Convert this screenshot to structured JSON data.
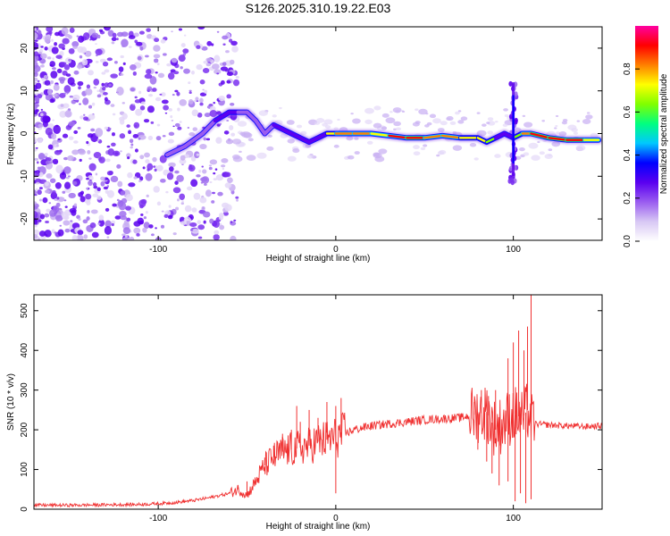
{
  "title": "S126.2025.310.19.22.E03",
  "chart_data": [
    {
      "type": "heatmap",
      "name": "spectrogram",
      "xlabel": "Height of straight line (km)",
      "ylabel": "Frequency (Hz)",
      "xlim": [
        -170,
        150
      ],
      "ylim": [
        -25,
        25
      ],
      "xticks": [
        -100,
        0,
        100
      ],
      "yticks": [
        -20,
        -10,
        0,
        10,
        20
      ],
      "colorbar": {
        "label": "Normalized spectral amplitude",
        "range": [
          0,
          1
        ],
        "ticks": [
          "0.0",
          "0.2",
          "0.4",
          "0.6",
          "0.8"
        ],
        "colors": [
          "#ffffff",
          "#d8c8f4",
          "#9a5cf0",
          "#5a00f0",
          "#0000ff",
          "#00c8ff",
          "#00ff80",
          "#80ff00",
          "#ffff00",
          "#ff8000",
          "#ff0000",
          "#ff00a0"
        ]
      },
      "ridge": {
        "x": [
          -95,
          -85,
          -75,
          -68,
          -60,
          -55,
          -50,
          -45,
          -40,
          -35,
          -30,
          -25,
          -20,
          -15,
          -10,
          -5,
          0,
          10,
          20,
          30,
          40,
          50,
          60,
          70,
          80,
          85,
          90,
          95,
          100,
          105,
          110,
          120,
          130,
          140,
          148
        ],
        "y": [
          -5,
          -3,
          0,
          3,
          5,
          5,
          5,
          3,
          0,
          2,
          1,
          0,
          -1,
          -2,
          -1,
          0,
          0,
          0,
          0,
          -0.5,
          -1,
          -1,
          -0.5,
          -1,
          -1,
          -2,
          -1,
          0,
          -1,
          0,
          0,
          -1,
          -1.5,
          -1.5,
          -1.5
        ],
        "amplitude": [
          0.3,
          0.35,
          0.35,
          0.4,
          0.45,
          0.4,
          0.4,
          0.35,
          0.35,
          0.4,
          0.45,
          0.45,
          0.45,
          0.5,
          0.5,
          0.6,
          0.8,
          0.9,
          0.7,
          0.8,
          0.95,
          0.9,
          0.8,
          0.75,
          0.7,
          0.7,
          0.6,
          0.4,
          0.5,
          0.75,
          0.9,
          0.95,
          0.95,
          0.9,
          0.6
        ]
      }
    },
    {
      "type": "line",
      "name": "snr",
      "xlabel": "Height of straight line (km)",
      "ylabel": "SNR (10 * v/v)",
      "xlim": [
        -170,
        150
      ],
      "ylim": [
        0,
        540
      ],
      "xticks": [
        -100,
        0,
        100
      ],
      "yticks": [
        0,
        100,
        200,
        300,
        400,
        500
      ],
      "color": "#f03030",
      "series": [
        {
          "name": "SNR",
          "x": [
            -170,
            -150,
            -130,
            -110,
            -100,
            -90,
            -80,
            -70,
            -60,
            -55,
            -50,
            -45,
            -40,
            -35,
            -30,
            -25,
            -20,
            -15,
            -10,
            -5,
            0,
            5,
            10,
            15,
            20,
            30,
            40,
            50,
            60,
            70,
            75,
            80,
            85,
            90,
            95,
            100,
            105,
            108,
            110,
            112,
            120,
            130,
            140,
            150
          ],
          "y": [
            10,
            10,
            11,
            12,
            14,
            17,
            22,
            30,
            40,
            50,
            35,
            70,
            110,
            130,
            145,
            150,
            155,
            160,
            170,
            175,
            180,
            190,
            200,
            205,
            210,
            215,
            220,
            225,
            228,
            230,
            235,
            240,
            245,
            200,
            220,
            240,
            230,
            250,
            220,
            215,
            212,
            210,
            208,
            210
          ],
          "spikes": [
            {
              "x": -55,
              "y": 60
            },
            {
              "x": -50,
              "y": 70
            },
            {
              "x": -40,
              "y": 130
            },
            {
              "x": -35,
              "y": 160
            },
            {
              "x": -30,
              "y": 190
            },
            {
              "x": -25,
              "y": 200
            },
            {
              "x": -22,
              "y": 260
            },
            {
              "x": -20,
              "y": 220
            },
            {
              "x": -15,
              "y": 250
            },
            {
              "x": -10,
              "y": 230
            },
            {
              "x": -5,
              "y": 270
            },
            {
              "x": 0,
              "y": 260
            },
            {
              "x": 3,
              "y": 280
            },
            {
              "x": 78,
              "y": 270
            },
            {
              "x": 82,
              "y": 300
            },
            {
              "x": 86,
              "y": 285
            },
            {
              "x": 90,
              "y": 300
            },
            {
              "x": 97,
              "y": 380
            },
            {
              "x": 100,
              "y": 420
            },
            {
              "x": 103,
              "y": 450
            },
            {
              "x": 106,
              "y": 400
            },
            {
              "x": 108,
              "y": 460
            },
            {
              "x": 110,
              "y": 540
            }
          ],
          "dips": [
            {
              "x": 0,
              "y": 40
            },
            {
              "x": 80,
              "y": 150
            },
            {
              "x": 85,
              "y": 120
            },
            {
              "x": 88,
              "y": 90
            },
            {
              "x": 92,
              "y": 60
            },
            {
              "x": 97,
              "y": 70
            },
            {
              "x": 101,
              "y": 20
            },
            {
              "x": 104,
              "y": 40
            },
            {
              "x": 107,
              "y": 15
            },
            {
              "x": 110,
              "y": 25
            }
          ]
        }
      ]
    }
  ]
}
